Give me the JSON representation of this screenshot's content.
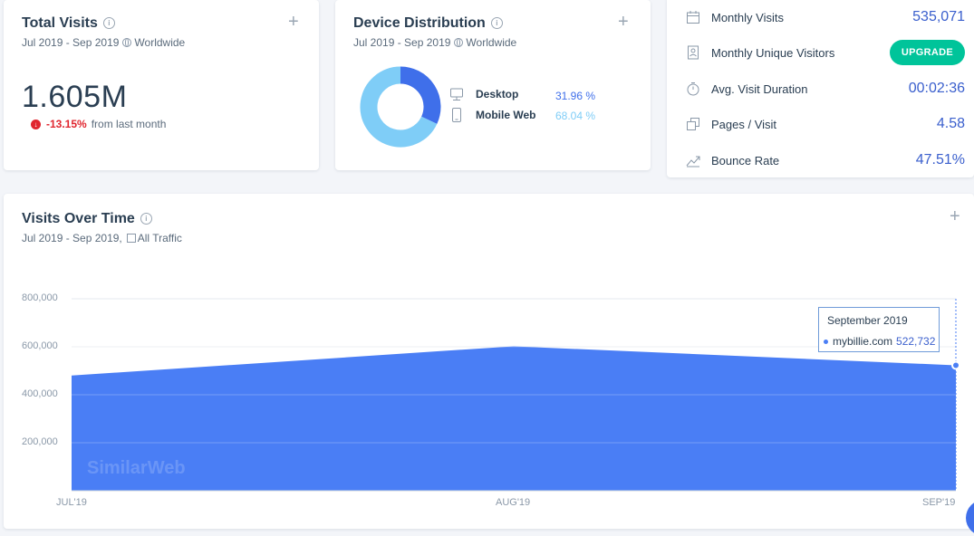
{
  "total_visits": {
    "title": "Total Visits",
    "date_range": "Jul 2019 - Sep 2019",
    "region": "Worldwide",
    "value": "1.605M",
    "change": "-13.15%",
    "change_text": "from last month"
  },
  "device_distribution": {
    "title": "Device Distribution",
    "date_range": "Jul 2019 - Sep 2019",
    "region": "Worldwide",
    "items": [
      {
        "label": "Desktop",
        "value": "31.96 %",
        "share": 31.96,
        "color": "#3f6fea"
      },
      {
        "label": "Mobile Web",
        "value": "68.04 %",
        "share": 68.04,
        "color": "#7fcdf7"
      }
    ]
  },
  "engagement": {
    "upgrade_label": "UPGRADE",
    "metrics": [
      {
        "label": "Monthly Visits",
        "value": "535,071",
        "icon": "calendar-icon"
      },
      {
        "label": "Monthly Unique Visitors",
        "value": "",
        "icon": "person-badge-icon"
      },
      {
        "label": "Avg. Visit Duration",
        "value": "00:02:36",
        "icon": "stopwatch-icon"
      },
      {
        "label": "Pages / Visit",
        "value": "4.58",
        "icon": "pages-icon"
      },
      {
        "label": "Bounce Rate",
        "value": "47.51%",
        "icon": "trend-icon"
      }
    ]
  },
  "visits_over_time": {
    "title": "Visits Over Time",
    "date_range": "Jul 2019 - Sep 2019,",
    "traffic": "All Traffic",
    "watermark": "SimilarWeb",
    "tooltip": {
      "title": "September 2019",
      "site": "mybillie.com",
      "value": "522,732"
    }
  },
  "chart_data": {
    "type": "area",
    "categories": [
      "JUL'19",
      "AUG'19",
      "SEP'19"
    ],
    "series": [
      {
        "name": "mybillie.com",
        "values": [
          480000,
          602000,
          522732
        ],
        "color": "#4a7ef5"
      }
    ],
    "y_ticks": [
      "200,000",
      "400,000",
      "600,000",
      "800,000"
    ],
    "ylim": [
      0,
      800000
    ],
    "grid": true
  }
}
